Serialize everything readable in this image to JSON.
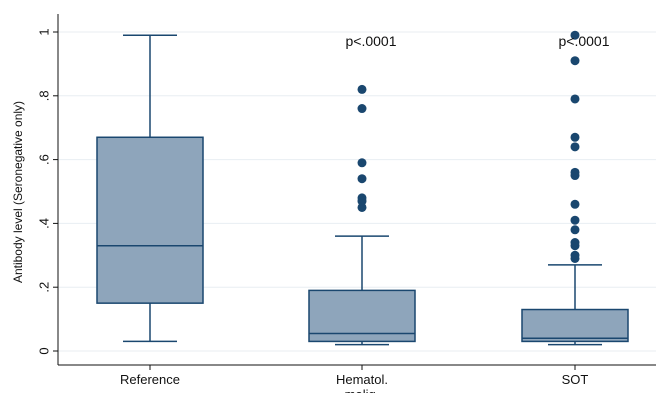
{
  "chart_data": {
    "type": "box",
    "ylabel": "Antibody level (Seronegative only)",
    "ylim": [
      0,
      1
    ],
    "yticks": [
      {
        "value": 0,
        "label": "0"
      },
      {
        "value": 0.2,
        "label": ".2"
      },
      {
        "value": 0.4,
        "label": ".4"
      },
      {
        "value": 0.6,
        "label": ".6"
      },
      {
        "value": 0.8,
        "label": ".8"
      },
      {
        "value": 1,
        "label": "1"
      }
    ],
    "grid": true,
    "box_color": "#8ea5bb",
    "outline_color": "#1a476f",
    "grid_color": "#e8eef2",
    "groups": [
      {
        "label": "Reference",
        "whisker_low": 0.03,
        "q1": 0.15,
        "median": 0.33,
        "q3": 0.67,
        "whisker_high": 0.99,
        "outliers": [],
        "annotation": ""
      },
      {
        "label": "Hematol. malig.",
        "whisker_low": 0.02,
        "q1": 0.03,
        "median": 0.055,
        "q3": 0.19,
        "whisker_high": 0.36,
        "outliers": [
          0.45,
          0.47,
          0.48,
          0.54,
          0.59,
          0.76,
          0.82
        ],
        "annotation": "p<.0001"
      },
      {
        "label": "SOT",
        "whisker_low": 0.02,
        "q1": 0.03,
        "median": 0.04,
        "q3": 0.13,
        "whisker_high": 0.27,
        "outliers": [
          0.29,
          0.3,
          0.33,
          0.34,
          0.38,
          0.41,
          0.46,
          0.55,
          0.56,
          0.64,
          0.67,
          0.79,
          0.91,
          0.99
        ],
        "annotation": "p<.0001"
      }
    ]
  }
}
